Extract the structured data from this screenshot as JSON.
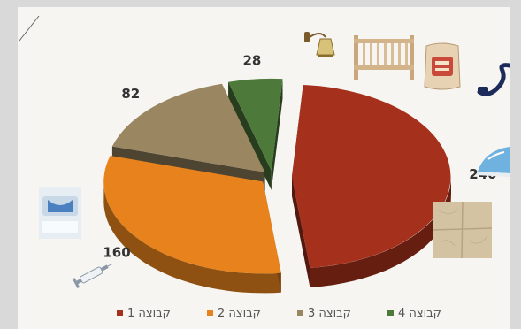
{
  "chart_data": {
    "type": "pie",
    "title": "",
    "categories": [
      "קבוצה 1",
      "קבוצה 2",
      "קבוצה 3",
      "קבוצה 4"
    ],
    "values": [
      240,
      160,
      82,
      28
    ],
    "colors": [
      "#a5301b",
      "#e7821c",
      "#9a8762",
      "#4d7a3a"
    ],
    "legend_position": "bottom",
    "style": "3d-exploded"
  },
  "decorations": [
    "wall-lamp-icon",
    "baby-crib-icon",
    "cement-bag-icon",
    "cord-icon",
    "steam-iron-icon",
    "floor-tile-icon",
    "washing-machine-icon",
    "syringe-icon"
  ]
}
